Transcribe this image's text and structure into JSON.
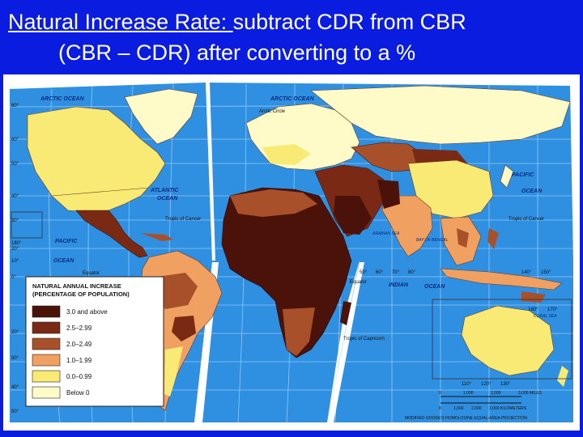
{
  "slide": {
    "title_underlined": "Natural Increase Rate: ",
    "title_rest": "subtract CDR from CBR",
    "subtitle": "(CBR – CDR) after converting to a %"
  },
  "legend": {
    "title_line1": "NATURAL ANNUAL INCREASE",
    "title_line2": "(PERCENTAGE OF POPULATION)",
    "items": [
      {
        "label": "3.0 and above",
        "color": "#4a1208"
      },
      {
        "label": "2.5–2.99",
        "color": "#7a2a14"
      },
      {
        "label": "2.0–2.49",
        "color": "#a8502a"
      },
      {
        "label": "1.0–1.99",
        "color": "#f0a060"
      },
      {
        "label": "0.0–0.99",
        "color": "#f8ea74"
      },
      {
        "label": "Below 0",
        "color": "#fffbc8"
      }
    ]
  },
  "map_labels": {
    "arctic_ocean_left": "ARCTIC OCEAN",
    "arctic_ocean_right": "ARCTIC OCEAN",
    "arctic_circle": "Arctic Circle",
    "atlantic": "ATLANTIC",
    "atlantic_ocean": "OCEAN",
    "pacific_left": "PACIFIC",
    "pacific_left_ocean": "OCEAN",
    "pacific_right": "PACIFIC",
    "pacific_right_ocean": "OCEAN",
    "indian": "INDIAN",
    "indian_ocean": "OCEAN",
    "tropic_cancer_left": "Tropic of Cancer",
    "tropic_cancer_right": "Tropic of Cancer",
    "tropic_capricorn": "Tropic of Capricorn",
    "equator_left": "Equator",
    "equator_right": "Equator",
    "arabian_sea": "ARABIAN SEA",
    "bay_bengal": "BAY OF BENGAL",
    "coral_sea": "CORAL SEA",
    "lat_80": "80°",
    "lat_60": "60°",
    "lat_50": "50°",
    "lat_40": "40°",
    "lat_30": "30°",
    "lat_20": "20°",
    "lat_10": "10°",
    "lat_0": "0°",
    "lon_180": "180°",
    "lon_50": "50°",
    "lon_60": "60°",
    "lon_70": "70°",
    "lon_80": "80°",
    "lon_140": "140°",
    "lon_150": "150°",
    "lon_160": "160°",
    "lon_170": "170°",
    "lon_110": "110°",
    "lon_120": "120°",
    "lon_130": "130°",
    "lat_s20": "20°",
    "lat_s30": "30°",
    "lat_s40": "40°",
    "lat_s50": "50°"
  },
  "scale": {
    "miles_ticks": [
      "0",
      "1,000",
      "2,000",
      "3,000 MILES"
    ],
    "km_ticks": [
      "0",
      "1,000",
      "2,000",
      "3,000 KILOMETERS"
    ],
    "projection": "MODIFIED GOODE'S HOMOLOSINE EQUAL-AREA PROJECTION"
  },
  "colors": {
    "ocean": "#2f8fe0",
    "background": "#0a1ce0",
    "grid": "#bfe0ff"
  }
}
